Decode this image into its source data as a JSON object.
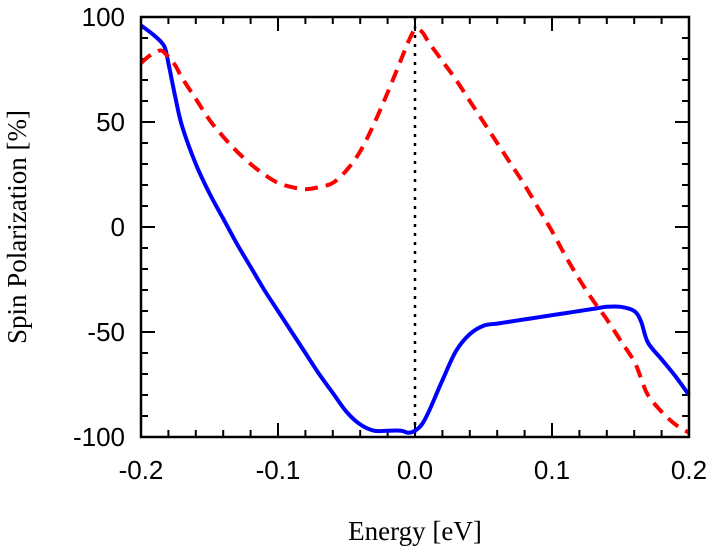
{
  "chart_data": {
    "type": "line",
    "title": "",
    "xlabel": "Energy [eV]",
    "ylabel": "Spin Polarization [%]",
    "xlim": [
      -0.2,
      0.2
    ],
    "ylim": [
      -100,
      100
    ],
    "xticks": [
      -0.2,
      -0.1,
      0.0,
      0.1,
      0.2
    ],
    "xtick_labels": [
      "-0.2",
      "-0.1",
      "0.0",
      "0.1",
      "0.2"
    ],
    "yticks": [
      -100,
      -50,
      0,
      50,
      100
    ],
    "ytick_labels": [
      "-100",
      "-50",
      "0",
      "50",
      "100"
    ],
    "grid": false,
    "vertical_reference_line": {
      "x": 0.0,
      "style": "dotted",
      "color": "#000000"
    },
    "series": [
      {
        "color": "#0000ff",
        "style": "solid",
        "x": [
          -0.2,
          -0.19,
          -0.183,
          -0.18,
          -0.175,
          -0.17,
          -0.16,
          -0.15,
          -0.14,
          -0.13,
          -0.12,
          -0.11,
          -0.1,
          -0.09,
          -0.08,
          -0.07,
          -0.06,
          -0.05,
          -0.04,
          -0.03,
          -0.02,
          -0.01,
          -0.005,
          0.0,
          0.005,
          0.01,
          0.02,
          0.03,
          0.04,
          0.05,
          0.06,
          0.07,
          0.08,
          0.09,
          0.1,
          0.11,
          0.12,
          0.13,
          0.14,
          0.15,
          0.16,
          0.165,
          0.17,
          0.18,
          0.19,
          0.2
        ],
        "y": [
          96,
          91,
          86,
          78,
          62,
          48,
          30,
          16,
          4,
          -8,
          -19,
          -30,
          -40,
          -50,
          -60,
          -70,
          -79,
          -88,
          -94,
          -97,
          -97,
          -97,
          -98,
          -97,
          -94,
          -88,
          -73,
          -59,
          -51,
          -47,
          -46,
          -45,
          -44,
          -43,
          -42,
          -41,
          -40,
          -39,
          -38,
          -38,
          -40,
          -45,
          -55,
          -63,
          -71,
          -80
        ]
      },
      {
        "color": "#ff0000",
        "style": "dashed",
        "x": [
          -0.2,
          -0.195,
          -0.19,
          -0.185,
          -0.18,
          -0.175,
          -0.17,
          -0.16,
          -0.15,
          -0.14,
          -0.13,
          -0.12,
          -0.11,
          -0.1,
          -0.09,
          -0.08,
          -0.07,
          -0.06,
          -0.05,
          -0.04,
          -0.03,
          -0.02,
          -0.01,
          -0.005,
          0.0,
          0.005,
          0.01,
          0.02,
          0.03,
          0.04,
          0.05,
          0.06,
          0.07,
          0.08,
          0.09,
          0.1,
          0.11,
          0.12,
          0.13,
          0.14,
          0.15,
          0.16,
          0.165,
          0.17,
          0.18,
          0.19,
          0.2
        ],
        "y": [
          78,
          81,
          83,
          84,
          81,
          77,
          71,
          61,
          51,
          43,
          36,
          30,
          25,
          21,
          19,
          18,
          19,
          21,
          27,
          36,
          49,
          64,
          80,
          88,
          94,
          93,
          88,
          79,
          70,
          60,
          50,
          40,
          30,
          20,
          9,
          -2,
          -14,
          -25,
          -35,
          -44,
          -54,
          -64,
          -72,
          -80,
          -88,
          -94,
          -98
        ]
      }
    ]
  }
}
